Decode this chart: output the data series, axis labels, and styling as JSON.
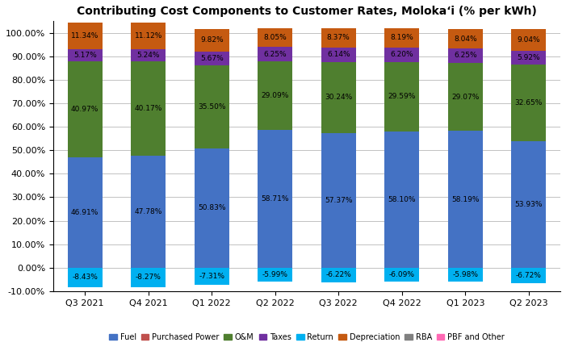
{
  "title": "Contributing Cost Components to Customer Rates, Moloka‘i (% per kWh)",
  "categories": [
    "Q3 2021",
    "Q4 2021",
    "Q1 2022",
    "Q2 2022",
    "Q3 2022",
    "Q4 2022",
    "Q1 2023",
    "Q2 2023"
  ],
  "series": {
    "Fuel": [
      46.91,
      47.78,
      50.83,
      58.71,
      57.37,
      58.1,
      58.19,
      53.93
    ],
    "O&M": [
      40.97,
      40.17,
      35.5,
      29.09,
      30.24,
      29.59,
      29.07,
      32.65
    ],
    "Taxes": [
      5.17,
      5.24,
      5.67,
      6.25,
      6.14,
      6.2,
      6.25,
      5.92
    ],
    "RBA": [
      0.0,
      0.0,
      0.0,
      0.0,
      0.0,
      0.0,
      0.0,
      0.0
    ],
    "Depreciation": [
      11.34,
      11.12,
      9.82,
      8.05,
      8.37,
      8.19,
      8.04,
      9.04
    ],
    "Purchased Power": [
      0.0,
      0.0,
      0.0,
      0.0,
      0.0,
      0.0,
      0.0,
      0.0
    ],
    "Return": [
      -8.43,
      -8.27,
      -7.31,
      -5.99,
      -6.22,
      -6.09,
      -5.98,
      -6.72
    ],
    "PBF and Other": [
      0.0,
      0.0,
      0.0,
      0.0,
      0.0,
      0.0,
      0.0,
      0.0
    ]
  },
  "labels": {
    "Fuel": [
      "46.91%",
      "47.78%",
      "50.83%",
      "58.71%",
      "57.37%",
      "58.10%",
      "58.19%",
      "53.93%"
    ],
    "O&M": [
      "40.97%",
      "40.17%",
      "35.50%",
      "29.09%",
      "30.24%",
      "29.59%",
      "29.07%",
      "32.65%"
    ],
    "Taxes": [
      "5.17%",
      "5.24%",
      "5.67%",
      "6.25%",
      "6.14%",
      "6.20%",
      "6.25%",
      "5.92%"
    ],
    "Depreciation": [
      "11.34%",
      "11.12%",
      "9.82%",
      "8.05%",
      "8.37%",
      "8.19%",
      "8.04%",
      "9.04%"
    ],
    "Return": [
      "-8.43%",
      "-8.27%",
      "-7.31%",
      "-5.99%",
      "-6.22%",
      "-6.09%",
      "-5.98%",
      "-6.72%"
    ]
  },
  "colors": {
    "Fuel": "#4472C4",
    "Purchased Power": "#C0504D",
    "O&M": "#4F7F2F",
    "Taxes": "#7030A0",
    "Return": "#00B0F0",
    "Depreciation": "#C55A11",
    "RBA": "#808080",
    "PBF and Other": "#FF69B4"
  },
  "ylim": [
    -10.0,
    105.0
  ],
  "yticks": [
    -10.0,
    0.0,
    10.0,
    20.0,
    30.0,
    40.0,
    50.0,
    60.0,
    70.0,
    80.0,
    90.0,
    100.0
  ],
  "ytick_labels": [
    "-10.00%",
    "0.00%",
    "10.00%",
    "20.00%",
    "30.00%",
    "40.00%",
    "50.00%",
    "60.00%",
    "70.00%",
    "80.00%",
    "90.00%",
    "100.00%"
  ],
  "figsize": [
    7.01,
    4.4
  ],
  "dpi": 100,
  "bar_width": 0.55
}
